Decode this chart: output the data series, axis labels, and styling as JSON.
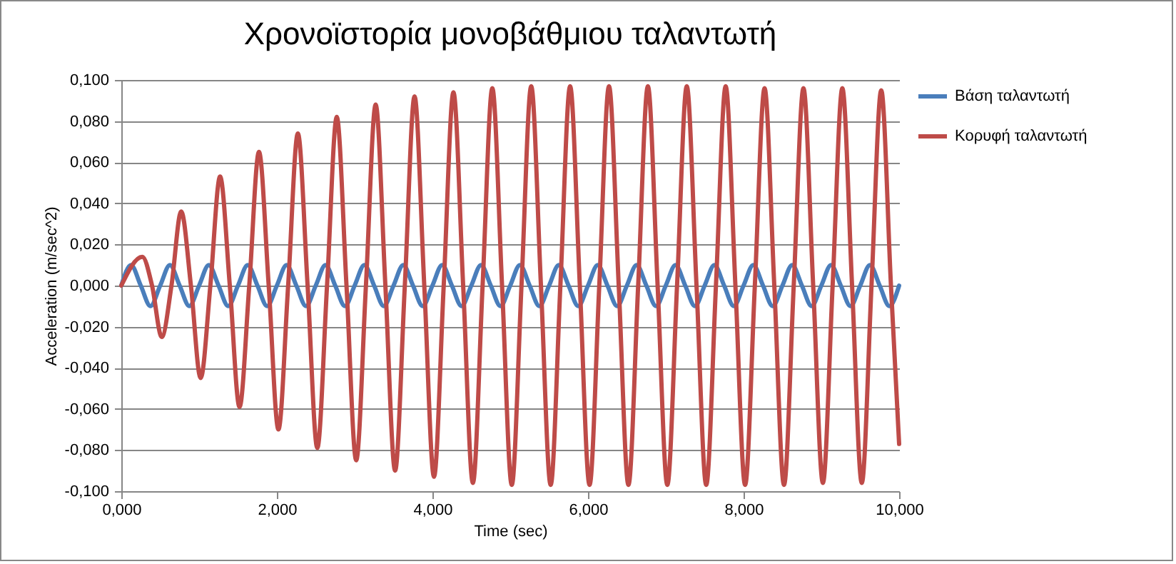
{
  "chart_data": {
    "type": "line",
    "title": "Χρονοϊστορία μονοβάθμιου ταλαντωτή",
    "xlabel": "Time (sec)",
    "ylabel": "Acceleration (m/sec^2)",
    "xlim": [
      0,
      10
    ],
    "ylim": [
      -0.1,
      0.1
    ],
    "xticks": [
      {
        "value": 0,
        "label": "0,000"
      },
      {
        "value": 2,
        "label": "2,000"
      },
      {
        "value": 4,
        "label": "4,000"
      },
      {
        "value": 6,
        "label": "6,000"
      },
      {
        "value": 8,
        "label": "8,000"
      },
      {
        "value": 10,
        "label": "10,000"
      }
    ],
    "yticks": [
      {
        "value": -0.1,
        "label": "-0,100"
      },
      {
        "value": -0.08,
        "label": "-0,080"
      },
      {
        "value": -0.06,
        "label": "-0,060"
      },
      {
        "value": -0.04,
        "label": "-0,040"
      },
      {
        "value": -0.02,
        "label": "-0,020"
      },
      {
        "value": 0,
        "label": "0,000"
      },
      {
        "value": 0.02,
        "label": "0,020"
      },
      {
        "value": 0.04,
        "label": "0,040"
      },
      {
        "value": 0.06,
        "label": "0,060"
      },
      {
        "value": 0.08,
        "label": "0,080"
      },
      {
        "value": 0.1,
        "label": "0,100"
      }
    ],
    "grid": "y",
    "legend": "right",
    "line_style": "solid",
    "series": [
      {
        "name": "Βάση ταλαντωτή",
        "color": "#4a7ebb",
        "x": [
          0,
          0.125,
          0.25,
          0.375,
          0.5,
          0.625,
          0.75,
          0.875,
          1,
          1.125,
          1.25,
          1.375,
          1.5,
          1.625,
          1.75,
          1.875,
          2,
          2.125,
          2.25,
          2.375,
          2.5,
          2.625,
          2.75,
          2.875,
          3,
          3.125,
          3.25,
          3.375,
          3.5,
          3.625,
          3.75,
          3.875,
          4,
          4.125,
          4.25,
          4.375,
          4.5,
          4.625,
          4.75,
          4.875,
          5,
          5.125,
          5.25,
          5.375,
          5.5,
          5.625,
          5.75,
          5.875,
          6,
          6.125,
          6.25,
          6.375,
          6.5,
          6.625,
          6.75,
          6.875,
          7,
          7.125,
          7.25,
          7.375,
          7.5,
          7.625,
          7.75,
          7.875,
          8,
          8.125,
          8.25,
          8.375,
          8.5,
          8.625,
          8.75,
          8.875,
          9,
          9.125,
          9.25,
          9.375,
          9.5,
          9.625,
          9.75,
          9.875,
          10
        ],
        "values": [
          0,
          0.01,
          0,
          -0.01,
          0,
          0.01,
          0,
          -0.01,
          0,
          0.01,
          0,
          -0.01,
          0,
          0.01,
          0,
          -0.01,
          0,
          0.01,
          0,
          -0.01,
          0,
          0.01,
          0,
          -0.01,
          0,
          0.01,
          0,
          -0.01,
          0,
          0.01,
          0,
          -0.01,
          0,
          0.01,
          0,
          -0.01,
          0,
          0.01,
          0,
          -0.01,
          0,
          0.01,
          0,
          -0.01,
          0,
          0.01,
          0,
          -0.01,
          0,
          0.01,
          0,
          -0.01,
          0,
          0.01,
          0,
          -0.01,
          0,
          0.01,
          0,
          -0.01,
          0,
          0.01,
          0,
          -0.01,
          0,
          0.01,
          0,
          -0.01,
          0,
          0.01,
          0,
          -0.01,
          0,
          0.01,
          0,
          -0.01,
          0,
          0.01,
          0,
          -0.01,
          0
        ]
      },
      {
        "name": "Κορυφή ταλαντωτή",
        "color": "#be4b48",
        "x": [
          0,
          0.27,
          0.395,
          0.52,
          0.645,
          0.77,
          0.895,
          1.02,
          1.145,
          1.27,
          1.395,
          1.52,
          1.645,
          1.77,
          1.895,
          2.02,
          2.145,
          2.27,
          2.395,
          2.52,
          2.645,
          2.77,
          2.895,
          3.02,
          3.145,
          3.27,
          3.395,
          3.52,
          3.645,
          3.77,
          3.895,
          4.02,
          4.145,
          4.27,
          4.395,
          4.52,
          4.645,
          4.77,
          4.895,
          5.02,
          5.145,
          5.27,
          5.395,
          5.52,
          5.645,
          5.77,
          5.895,
          6.02,
          6.145,
          6.27,
          6.395,
          6.52,
          6.645,
          6.77,
          6.895,
          7.02,
          7.145,
          7.27,
          7.395,
          7.52,
          7.645,
          7.77,
          7.895,
          8.02,
          8.145,
          8.27,
          8.395,
          8.52,
          8.645,
          8.77,
          8.895,
          9.02,
          9.145,
          9.27,
          9.395,
          9.52,
          9.645,
          9.77,
          9.895,
          10
        ],
        "values": [
          0,
          0.014,
          0,
          -0.025,
          0,
          0.036,
          0,
          -0.045,
          0,
          0.053,
          0,
          -0.059,
          0,
          0.065,
          0,
          -0.07,
          0,
          0.074,
          0,
          -0.079,
          0,
          0.082,
          0,
          -0.085,
          0,
          0.088,
          0,
          -0.09,
          0,
          0.092,
          0,
          -0.093,
          0,
          0.094,
          0,
          -0.096,
          0,
          0.096,
          0,
          -0.097,
          0,
          0.097,
          0,
          -0.097,
          0,
          0.097,
          0,
          -0.097,
          0,
          0.097,
          0,
          -0.097,
          0,
          0.097,
          0,
          -0.097,
          0,
          0.097,
          0,
          -0.097,
          0,
          0.097,
          0,
          -0.097,
          0,
          0.096,
          0,
          -0.097,
          0,
          0.096,
          0,
          -0.096,
          0,
          0.096,
          0,
          -0.096,
          0,
          0.095,
          0,
          -0.077
        ]
      }
    ]
  }
}
